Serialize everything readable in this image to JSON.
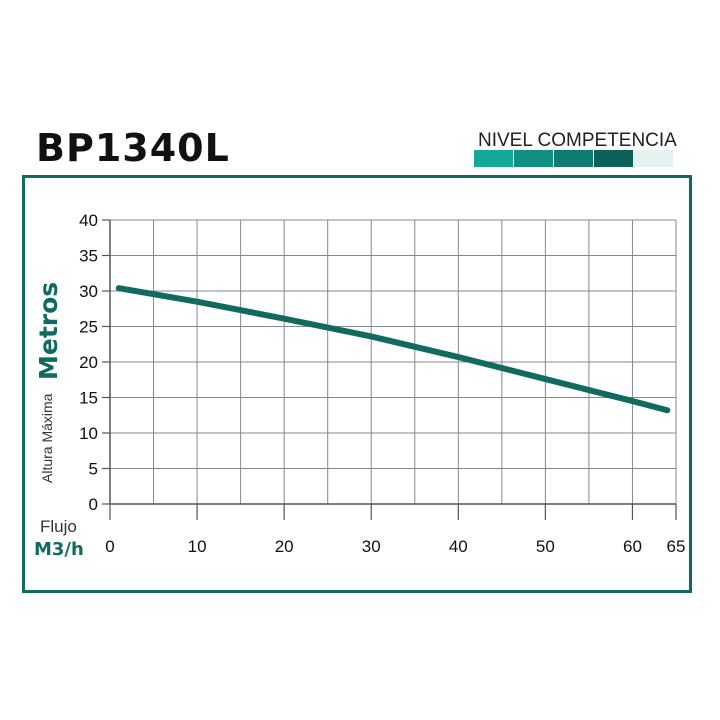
{
  "header": {
    "title": "BP1340L",
    "level_label": "NIVEL COMPETENCIA",
    "level_colors": [
      "#14a899",
      "#128f83",
      "#0f7c71",
      "#0c6259",
      "#e2f2f0"
    ]
  },
  "labels": {
    "y_small": "Altura Máxima",
    "y_big": "Metros",
    "x_small": "Flujo",
    "x_big": "M3/h"
  },
  "colors": {
    "accent": "#0f6b61",
    "curve": "#12695f",
    "grid": "#888888"
  },
  "chart_data": {
    "type": "line",
    "title": "BP1340L",
    "xlabel": "Flujo M3/h",
    "ylabel": "Altura Máxima Metros",
    "xlim": [
      0,
      65
    ],
    "ylim": [
      0,
      40
    ],
    "x_ticks": [
      0,
      10,
      20,
      30,
      40,
      50,
      60,
      65
    ],
    "y_ticks": [
      0,
      5,
      10,
      15,
      20,
      25,
      30,
      35,
      40
    ],
    "grid": true,
    "series": [
      {
        "x": [
          1,
          10,
          20,
          30,
          40,
          50,
          60,
          64
        ],
        "y": [
          30.4,
          28.5,
          26.1,
          23.6,
          20.7,
          17.6,
          14.5,
          13.2
        ]
      }
    ]
  }
}
